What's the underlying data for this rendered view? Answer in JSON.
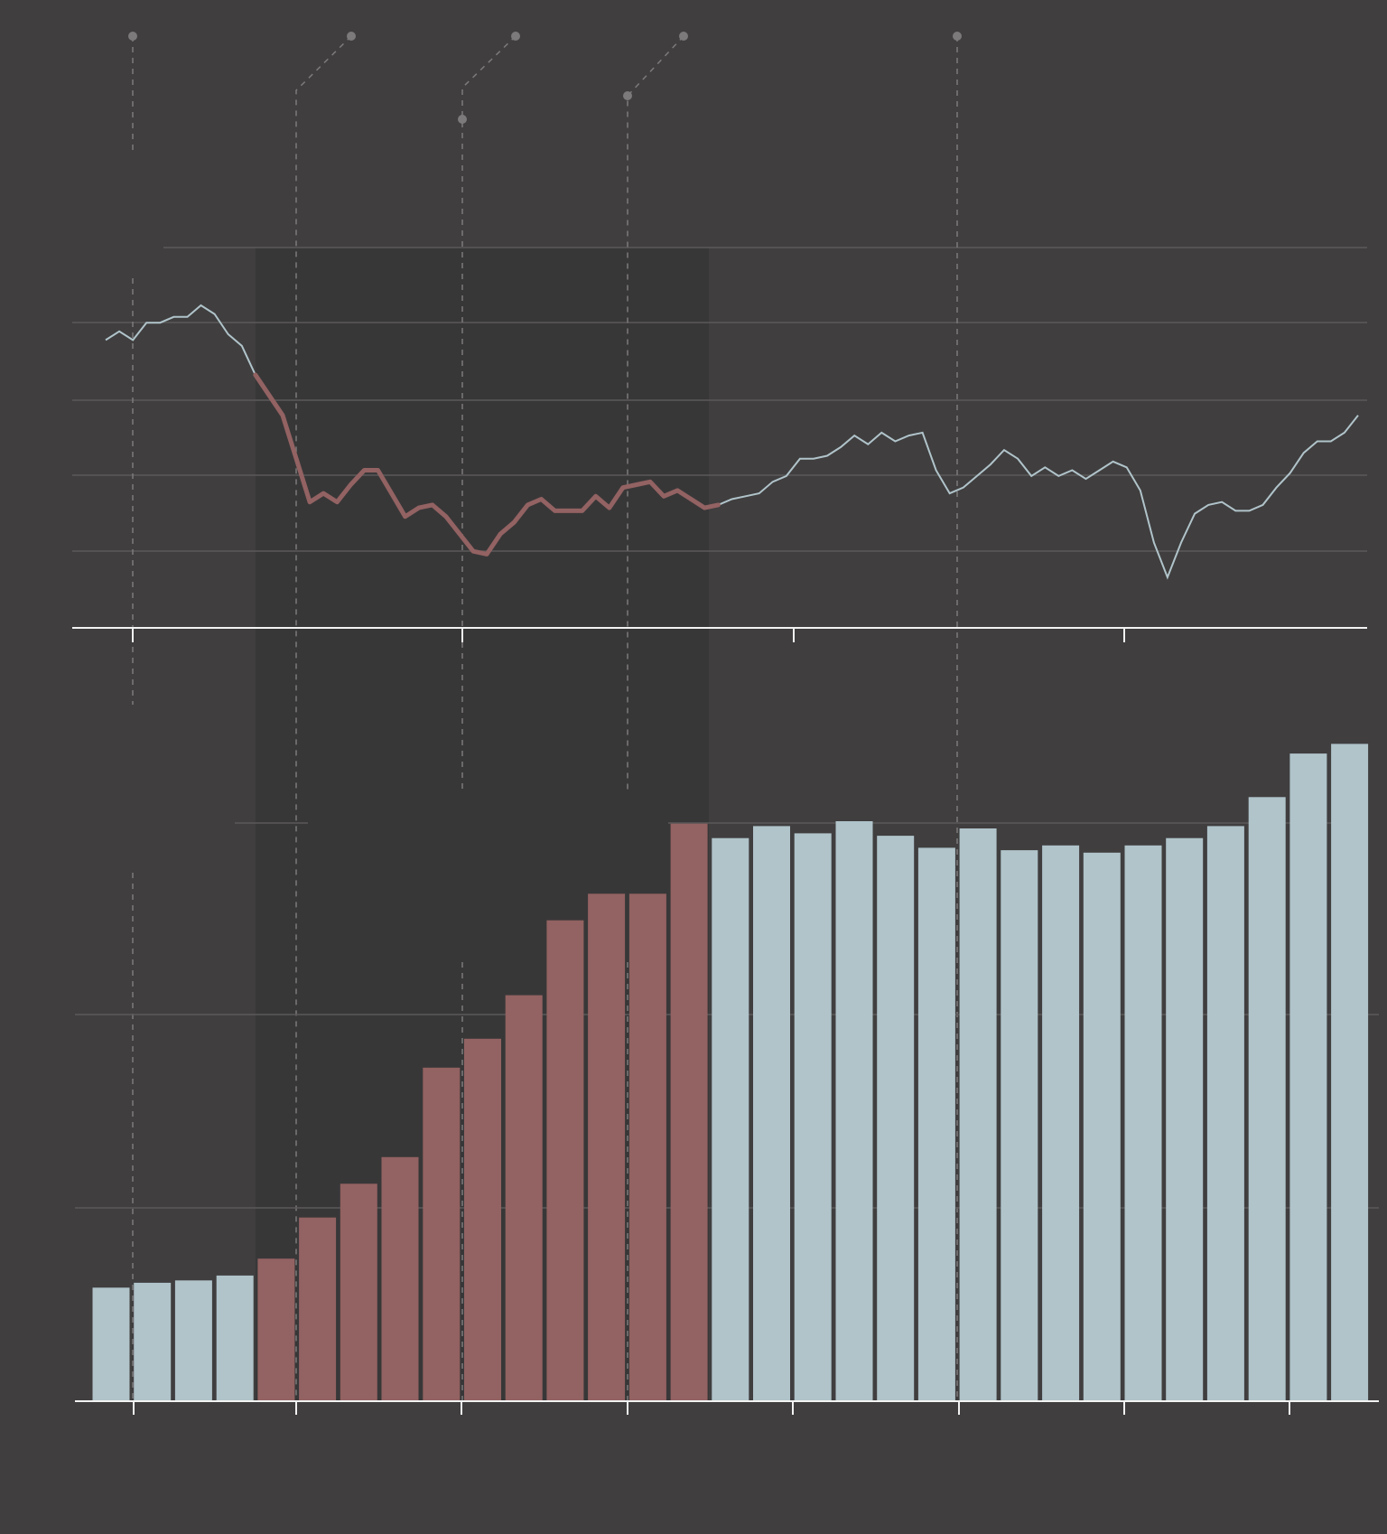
{
  "colors": {
    "background": "#403e3f",
    "shade": "#383738",
    "grid": "#5a5859",
    "axis": "#f2f2f2",
    "annotation": "#7c7a7b",
    "highlight": "#936262",
    "base": "#b0c4ca"
  },
  "chart_data": [
    {
      "type": "line",
      "title": "",
      "xlabel": "",
      "ylabel": "",
      "grid": true,
      "highlighted_range_index": [
        11,
        45
      ],
      "x_index_range": [
        0,
        94
      ],
      "values": [
        82,
        85,
        82,
        88,
        88,
        90,
        90,
        94,
        91,
        84,
        80,
        70,
        63,
        56,
        41,
        26,
        29,
        26,
        32,
        37,
        37,
        29,
        21,
        24,
        25,
        21,
        15,
        9,
        8,
        15,
        19,
        25,
        27,
        23,
        23,
        23,
        28,
        24,
        31,
        32,
        33,
        28,
        30,
        27,
        24,
        25,
        27,
        28,
        29,
        33,
        35,
        41,
        41,
        42,
        45,
        49,
        46,
        50,
        47,
        49,
        50,
        37,
        29,
        31,
        35,
        39,
        44,
        41,
        35,
        38,
        35,
        37,
        34,
        37,
        40,
        38,
        30,
        12,
        0,
        12,
        22,
        25,
        26,
        23,
        23,
        25,
        31,
        36,
        43,
        47,
        47,
        50,
        56
      ],
      "event_markers_index": [
        4,
        16,
        28,
        40,
        64
      ]
    },
    {
      "type": "bar",
      "title": "",
      "xlabel": "",
      "ylabel": "",
      "grid": true,
      "ylim": [
        0,
        14
      ],
      "highlighted_bar_range": [
        4,
        14
      ],
      "values": [
        2.35,
        2.45,
        2.5,
        2.6,
        2.95,
        3.8,
        4.5,
        5.05,
        6.9,
        7.5,
        8.4,
        9.95,
        10.5,
        10.5,
        11.95,
        11.65,
        11.9,
        11.75,
        12.0,
        11.7,
        11.45,
        11.85,
        11.4,
        11.5,
        11.35,
        11.5,
        11.65,
        11.9,
        12.5,
        13.4,
        13.6
      ]
    }
  ]
}
